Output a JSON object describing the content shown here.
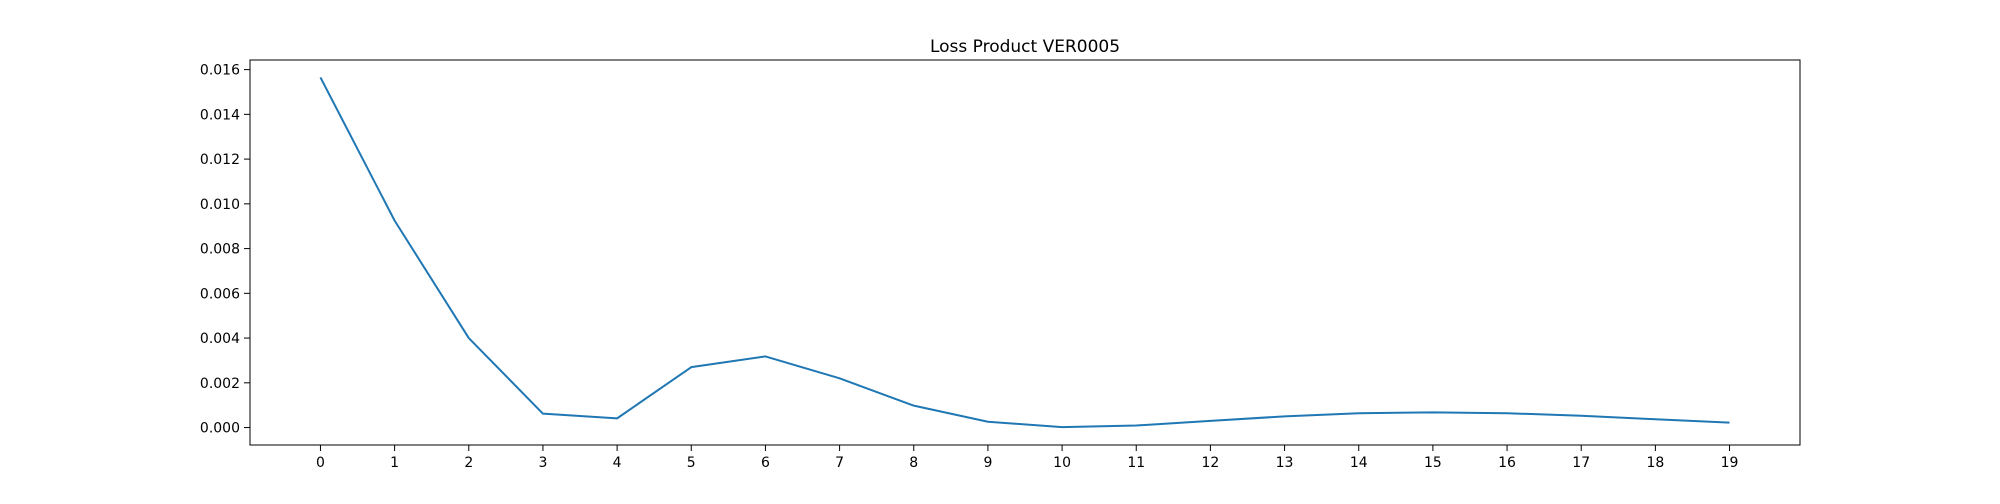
{
  "chart_data": {
    "type": "line",
    "title": "Loss Product VER0005",
    "xlabel": "",
    "ylabel": "",
    "x": [
      0,
      1,
      2,
      3,
      4,
      5,
      6,
      7,
      8,
      9,
      10,
      11,
      12,
      13,
      14,
      15,
      16,
      17,
      18,
      19
    ],
    "series": [
      {
        "values": [
          0.01565,
          0.00925,
          0.004,
          0.00062,
          0.00041,
          0.0027,
          0.00318,
          0.0022,
          0.00098,
          0.00026,
          2e-05,
          9e-05,
          0.0003,
          0.0005,
          0.00064,
          0.00068,
          0.00064,
          0.00053,
          0.00037,
          0.00022
        ],
        "color": "#1f77b4"
      }
    ],
    "xlim": [
      -0.95,
      19.95
    ],
    "ylim": [
      -0.00078,
      0.01643
    ],
    "xticks": [
      0,
      1,
      2,
      3,
      4,
      5,
      6,
      7,
      8,
      9,
      10,
      11,
      12,
      13,
      14,
      15,
      16,
      17,
      18,
      19
    ],
    "yticks": [
      0.0,
      0.002,
      0.004,
      0.006,
      0.008,
      0.01,
      0.012,
      0.014,
      0.016
    ],
    "ytick_labels": [
      "0.000",
      "0.002",
      "0.004",
      "0.006",
      "0.008",
      "0.010",
      "0.012",
      "0.014",
      "0.016"
    ],
    "grid": false,
    "legend": "none"
  }
}
